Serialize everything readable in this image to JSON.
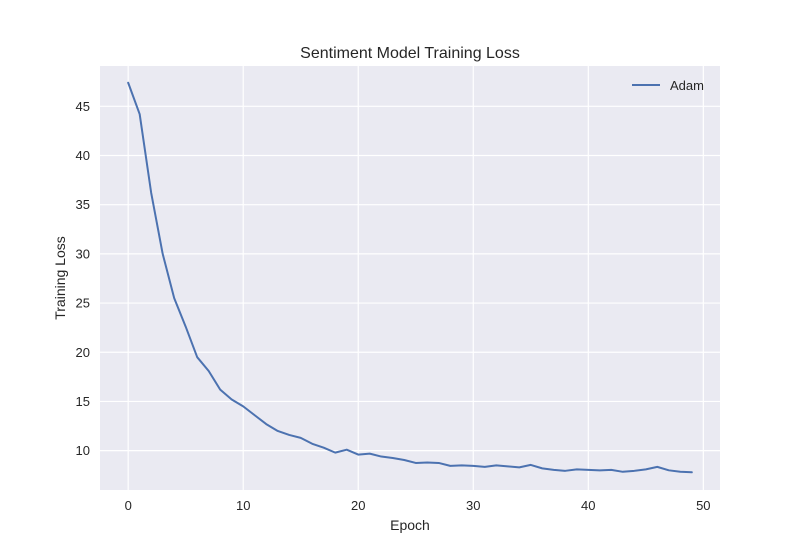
{
  "chart_data": {
    "type": "line",
    "title": "Sentiment Model Training Loss",
    "xlabel": "Epoch",
    "ylabel": "Training Loss",
    "xlim": [
      -2.45,
      51.45
    ],
    "ylim": [
      6.0,
      49.1
    ],
    "xticks": [
      0,
      10,
      20,
      30,
      40,
      50
    ],
    "yticks": [
      10,
      15,
      20,
      25,
      30,
      35,
      40,
      45
    ],
    "grid": true,
    "legend_position": "top-right",
    "series": [
      {
        "name": "Adam",
        "color": "#4C72B0",
        "x": [
          0,
          1,
          2,
          3,
          4,
          5,
          6,
          7,
          8,
          9,
          10,
          11,
          12,
          13,
          14,
          15,
          16,
          17,
          18,
          19,
          20,
          21,
          22,
          23,
          24,
          25,
          26,
          27,
          28,
          29,
          30,
          31,
          32,
          33,
          34,
          35,
          36,
          37,
          38,
          39,
          40,
          41,
          42,
          43,
          44,
          45,
          46,
          47,
          48,
          49
        ],
        "y": [
          47.4,
          44.2,
          36.2,
          30.0,
          25.5,
          22.6,
          19.5,
          18.1,
          16.2,
          15.2,
          14.5,
          13.6,
          12.7,
          12.0,
          11.6,
          11.3,
          10.7,
          10.3,
          9.8,
          10.1,
          9.6,
          9.7,
          9.4,
          9.25,
          9.05,
          8.75,
          8.8,
          8.75,
          8.45,
          8.5,
          8.45,
          8.35,
          8.5,
          8.4,
          8.3,
          8.55,
          8.2,
          8.05,
          7.95,
          8.1,
          8.05,
          8.0,
          8.05,
          7.85,
          7.95,
          8.1,
          8.35,
          8.0,
          7.85,
          7.8
        ]
      }
    ]
  }
}
